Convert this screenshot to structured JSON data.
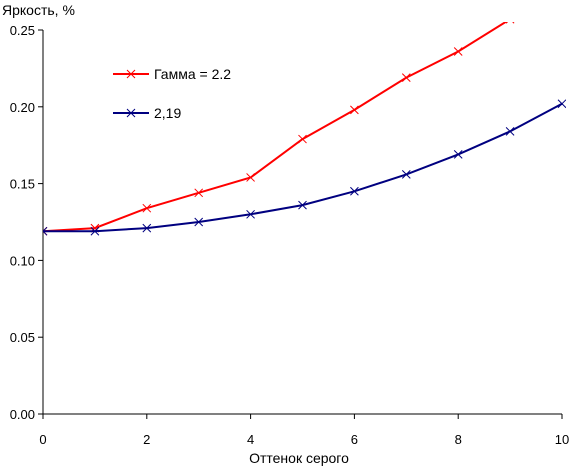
{
  "chart_data": {
    "type": "line",
    "ylabel": "Яркость, %",
    "xlabel": "Оттенок серого",
    "xlim": [
      0,
      10
    ],
    "ylim": [
      0,
      0.25
    ],
    "xticks": [
      0,
      2,
      4,
      6,
      8,
      10
    ],
    "xtick_labels": [
      "0",
      "2",
      "4",
      "6",
      "8",
      "10"
    ],
    "yticks": [
      0,
      0.05,
      0.1,
      0.15,
      0.2,
      0.25
    ],
    "ytick_labels": [
      "0.00",
      "0.05",
      "0.10",
      "0.15",
      "0.20",
      "0.25"
    ],
    "grid": false,
    "legend_position": "upper-left",
    "series": [
      {
        "name": "Гамма = 2.2",
        "color": "#ff0000",
        "marker": "x",
        "x": [
          0,
          1,
          2,
          3,
          4,
          5,
          6,
          7,
          8,
          9
        ],
        "y": [
          0.119,
          0.121,
          0.134,
          0.144,
          0.154,
          0.179,
          0.198,
          0.219,
          0.236,
          0.257
        ]
      },
      {
        "name": "2,19",
        "color": "#000080",
        "marker": "x",
        "x": [
          0,
          1,
          2,
          3,
          4,
          5,
          6,
          7,
          8,
          9,
          10
        ],
        "y": [
          0.119,
          0.119,
          0.121,
          0.125,
          0.13,
          0.136,
          0.145,
          0.156,
          0.169,
          0.184,
          0.202
        ]
      }
    ]
  }
}
